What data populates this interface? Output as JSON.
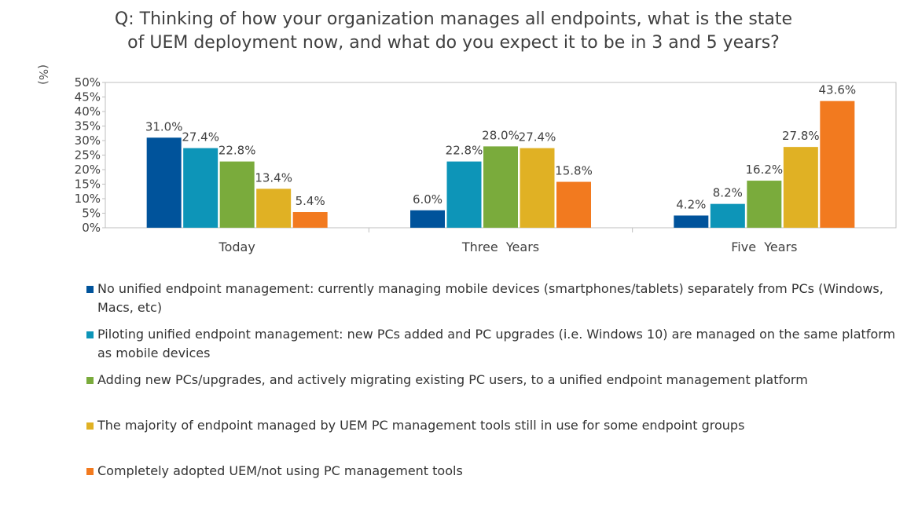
{
  "title_lines": [
    "Q: Thinking of how your organization manages all endpoints, what is the state",
    "of UEM deployment now, and what do you expect it to be in 3 and 5 years?"
  ],
  "chart_data": {
    "type": "bar",
    "title": "Q: Thinking of how your organization manages all endpoints, what is the state of UEM deployment now, and what do you expect it to be in 3 and 5 years?",
    "ylabel": "(%)",
    "xlabel": "",
    "ylim": [
      0,
      50
    ],
    "yticks": [
      "0%",
      "5%",
      "10%",
      "15%",
      "20%",
      "25%",
      "30%",
      "35%",
      "40%",
      "45%",
      "50%"
    ],
    "categories": [
      "Today",
      "Three  Years",
      "Five  Years"
    ],
    "grid": false,
    "legend_position": "bottom",
    "series": [
      {
        "name": "No unified endpoint management: currently managing mobile devices (smartphones/tablets) separately from PCs (Windows, Macs, etc)",
        "color": "#00539b",
        "values": [
          31.0,
          6.0,
          4.2
        ],
        "labels": [
          "31.0%",
          "6.0%",
          "4.2%"
        ]
      },
      {
        "name": "Piloting unified endpoint management: new PCs added and PC upgrades (i.e. Windows 10) are managed on the same platform as mobile devices",
        "color": "#0d95b8",
        "values": [
          27.4,
          22.8,
          8.2
        ],
        "labels": [
          "27.4%",
          "22.8%",
          "8.2%"
        ]
      },
      {
        "name": "Adding new PCs/upgrades, and actively migrating existing PC users, to a unified endpoint management platform",
        "color": "#7aab3c",
        "values": [
          22.8,
          28.0,
          16.2
        ],
        "labels": [
          "22.8%",
          "28.0%",
          "16.2%"
        ]
      },
      {
        "name": "The majority of endpoint managed by UEM PC management tools still in use for some endpoint groups",
        "color": "#e0b124",
        "values": [
          13.4,
          27.4,
          27.8
        ],
        "labels": [
          "13.4%",
          "27.4%",
          "27.8%"
        ]
      },
      {
        "name": "Completely adopted UEM/not using PC management tools",
        "color": "#f27a1f",
        "values": [
          5.4,
          15.8,
          43.6
        ],
        "labels": [
          "5.4%",
          "15.8%",
          "43.6%"
        ]
      }
    ]
  }
}
